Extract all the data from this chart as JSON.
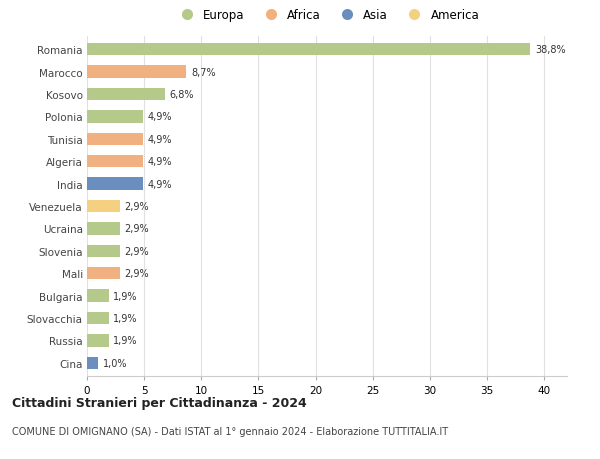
{
  "countries": [
    "Romania",
    "Marocco",
    "Kosovo",
    "Polonia",
    "Tunisia",
    "Algeria",
    "India",
    "Venezuela",
    "Ucraina",
    "Slovenia",
    "Mali",
    "Bulgaria",
    "Slovacchia",
    "Russia",
    "Cina"
  ],
  "values": [
    38.8,
    8.7,
    6.8,
    4.9,
    4.9,
    4.9,
    4.9,
    2.9,
    2.9,
    2.9,
    2.9,
    1.9,
    1.9,
    1.9,
    1.0
  ],
  "labels": [
    "38,8%",
    "8,7%",
    "6,8%",
    "4,9%",
    "4,9%",
    "4,9%",
    "4,9%",
    "2,9%",
    "2,9%",
    "2,9%",
    "2,9%",
    "1,9%",
    "1,9%",
    "1,9%",
    "1,0%"
  ],
  "colors": [
    "#b5c98a",
    "#f0b080",
    "#b5c98a",
    "#b5c98a",
    "#f0b080",
    "#f0b080",
    "#6a8fbf",
    "#f5d080",
    "#b5c98a",
    "#b5c98a",
    "#f0b080",
    "#b5c98a",
    "#b5c98a",
    "#b5c98a",
    "#6a8fbf"
  ],
  "legend_labels": [
    "Europa",
    "Africa",
    "Asia",
    "America"
  ],
  "legend_colors": [
    "#b5c98a",
    "#f0b080",
    "#6a8fbf",
    "#f5d080"
  ],
  "title": "Cittadini Stranieri per Cittadinanza - 2024",
  "subtitle": "COMUNE DI OMIGNANO (SA) - Dati ISTAT al 1° gennaio 2024 - Elaborazione TUTTITALIA.IT",
  "xlim": [
    0,
    42
  ],
  "xticks": [
    0,
    5,
    10,
    15,
    20,
    25,
    30,
    35,
    40
  ],
  "bg_color": "#ffffff",
  "grid_color": "#e0e0e0"
}
